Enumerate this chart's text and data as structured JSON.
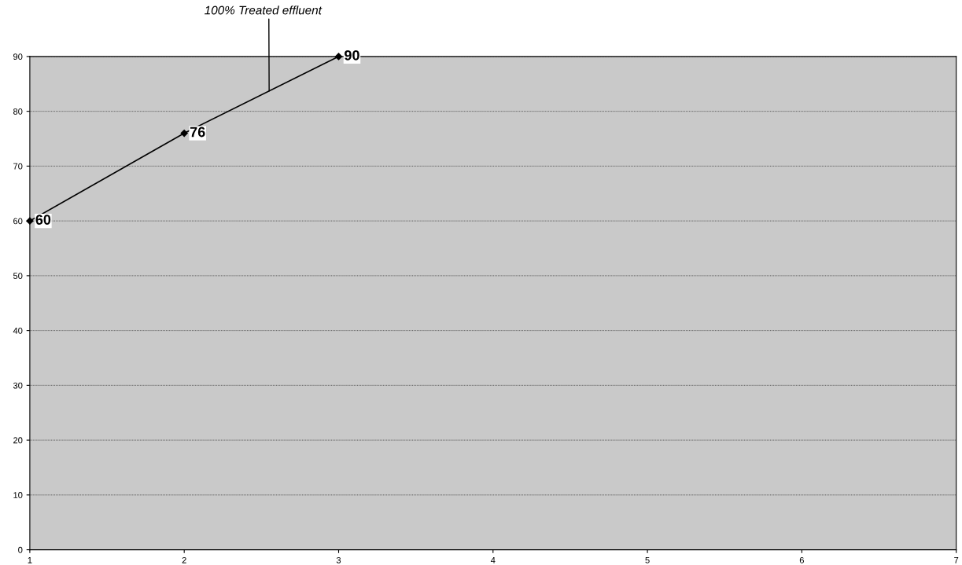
{
  "chart_data": {
    "type": "line",
    "x": [
      1,
      2,
      3
    ],
    "series": [
      {
        "color": "#000000",
        "values": [
          60,
          76,
          90
        ]
      }
    ],
    "xlim": [
      1,
      7
    ],
    "xticks": [
      1,
      2,
      3,
      4,
      5,
      6,
      7
    ],
    "ylim": [
      0,
      90
    ],
    "yticks": [
      0,
      10,
      20,
      30,
      40,
      50,
      60,
      70,
      80,
      90
    ],
    "grid": "y",
    "marker": "diamond",
    "line_style": "solid",
    "data_labels": true,
    "annotations": [
      {
        "text": "100% Treated effluent",
        "x": 2.55,
        "y": 83.7
      }
    ]
  }
}
